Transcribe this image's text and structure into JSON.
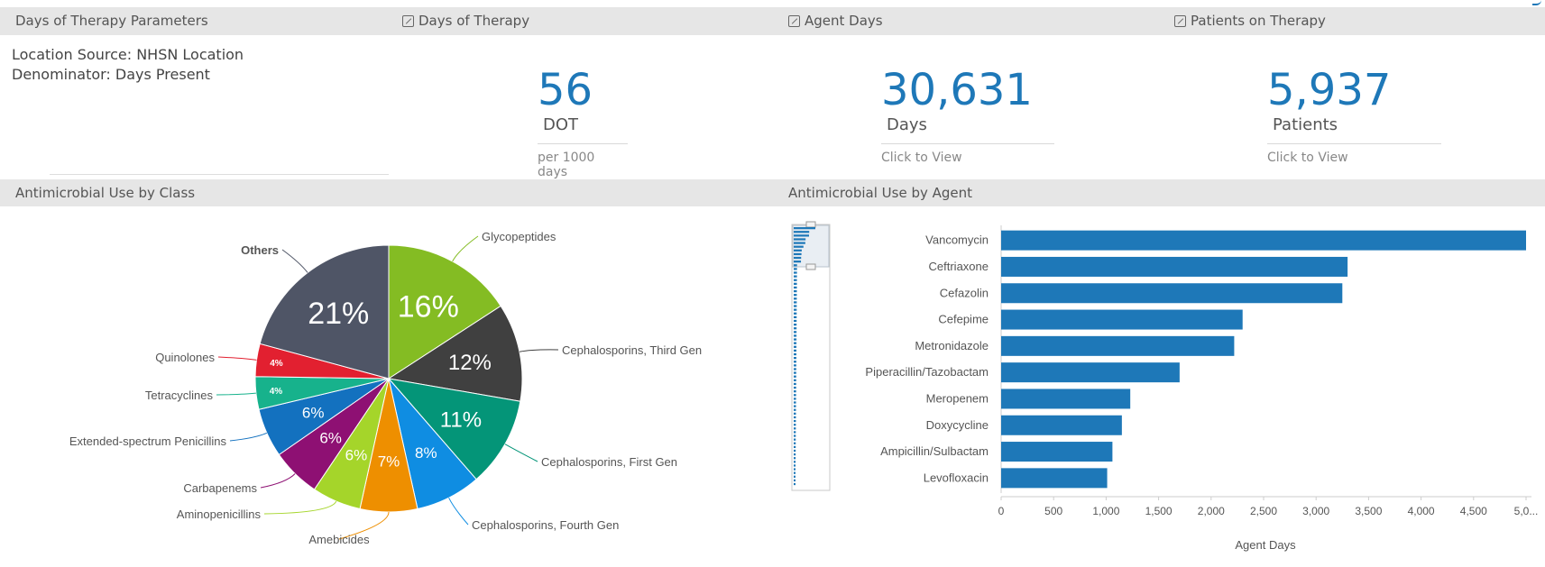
{
  "headers": {
    "params": "Days of Therapy Parameters",
    "dot": "Days of Therapy",
    "agent_days": "Agent Days",
    "patients": "Patients on Therapy",
    "by_class": "Antimicrobial Use by Class",
    "by_agent": "Antimicrobial Use by Agent"
  },
  "parameters": {
    "location": "Location Source: NHSN Location",
    "denominator": "Denominator: Days Present"
  },
  "kpis": {
    "dot": {
      "value": "56",
      "unit": "DOT",
      "sub": "per 1000 days"
    },
    "agent_days": {
      "value": "30,631",
      "unit": "Days",
      "sub": "Click to View"
    },
    "patients": {
      "value": "5,937",
      "unit": "Patients",
      "sub": "Click to View"
    }
  },
  "colors": {
    "header_bg": "#e6e6e6",
    "kpi_blue": "#1e78b8",
    "bar_blue": "#1e78b8"
  },
  "chart_data": [
    {
      "type": "pie",
      "title": "Antimicrobial Use by Class",
      "slices": [
        {
          "label": "Glycopeptides",
          "value": 16,
          "display": "16%",
          "color": "#84bc23"
        },
        {
          "label": "Cephalosporins, Third Gen",
          "value": 12,
          "display": "12%",
          "color": "#404040"
        },
        {
          "label": "Cephalosporins, First Gen",
          "value": 11,
          "display": "11%",
          "color": "#049578"
        },
        {
          "label": "Cephalosporins, Fourth Gen",
          "value": 8,
          "display": "8%",
          "color": "#0f8de2"
        },
        {
          "label": "Amebicides",
          "value": 7,
          "display": "7%",
          "color": "#ee8f00"
        },
        {
          "label": "Aminopenicillins",
          "value": 6,
          "display": "6%",
          "color": "#a5d52a"
        },
        {
          "label": "Carbapenems",
          "value": 6,
          "display": "6%",
          "color": "#8e1073"
        },
        {
          "label": "Extended-spectrum Penicillins",
          "value": 6,
          "display": "6%",
          "color": "#1371bf"
        },
        {
          "label": "Tetracyclines",
          "value": 4,
          "display": "4%",
          "color": "#17b28c"
        },
        {
          "label": "Quinolones",
          "value": 4,
          "display": "4%",
          "color": "#e22030"
        },
        {
          "label": "Others",
          "value": 21,
          "display": "21%",
          "color": "#4f5566"
        }
      ]
    },
    {
      "type": "bar",
      "orientation": "horizontal",
      "title": "Antimicrobial Use by Agent",
      "categories": [
        "Vancomycin",
        "Ceftriaxone",
        "Cefazolin",
        "Cefepime",
        "Metronidazole",
        "Piperacillin/Tazobactam",
        "Meropenem",
        "Doxycycline",
        "Ampicillin/Sulbactam",
        "Levofloxacin"
      ],
      "values": [
        5000,
        3300,
        3250,
        2300,
        2220,
        1700,
        1230,
        1150,
        1060,
        1010
      ],
      "xlabel": "Agent Days",
      "xlim": [
        0,
        5000
      ],
      "ticks": [
        "0",
        "500",
        "1,000",
        "1,500",
        "2,000",
        "2,500",
        "3,000",
        "3,500",
        "4,000",
        "4,500",
        "5,0..."
      ],
      "tick_values": [
        0,
        500,
        1000,
        1500,
        2000,
        2500,
        3000,
        3500,
        4000,
        4500,
        5000
      ],
      "grid": false
    }
  ]
}
